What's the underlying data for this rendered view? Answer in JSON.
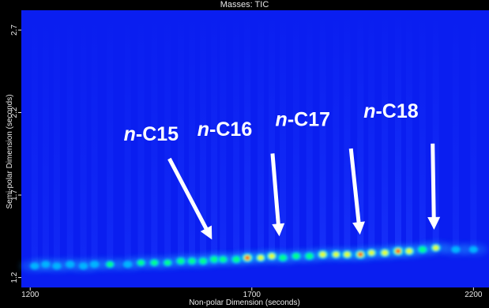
{
  "chart_data": {
    "type": "heatmap",
    "title": "Masses: TIC",
    "xlabel": "Non-polar Dimension (seconds)",
    "ylabel": "Semi-polar Dimension (seconds)",
    "xlim": [
      1180,
      2235
    ],
    "ylim": [
      1.14,
      2.82
    ],
    "x_ticks": [
      {
        "value": 1200,
        "label": "1200"
      },
      {
        "value": 1700,
        "label": "1700"
      },
      {
        "value": 2200,
        "label": "2200"
      }
    ],
    "y_ticks": [
      {
        "value": 1.2,
        "label": "1.2"
      },
      {
        "value": 1.7,
        "label": "1.7"
      },
      {
        "value": 2.2,
        "label": "2.2"
      },
      {
        "value": 2.7,
        "label": "2.7"
      }
    ],
    "grid": false,
    "colors": {
      "background": "#0a1ef0",
      "low": "#00aaff",
      "mid": "#00ff88",
      "high": "#ff1a1a",
      "frame": "#000000"
    },
    "peaks": [
      {
        "x": 1210,
        "y": 1.27,
        "intensity": 0.25
      },
      {
        "x": 1235,
        "y": 1.28,
        "intensity": 0.2
      },
      {
        "x": 1260,
        "y": 1.27,
        "intensity": 0.25
      },
      {
        "x": 1290,
        "y": 1.28,
        "intensity": 0.3
      },
      {
        "x": 1320,
        "y": 1.27,
        "intensity": 0.25
      },
      {
        "x": 1345,
        "y": 1.28,
        "intensity": 0.3
      },
      {
        "x": 1380,
        "y": 1.28,
        "intensity": 0.35
      },
      {
        "x": 1420,
        "y": 1.28,
        "intensity": 0.3
      },
      {
        "x": 1450,
        "y": 1.29,
        "intensity": 0.35
      },
      {
        "x": 1480,
        "y": 1.29,
        "intensity": 0.4
      },
      {
        "x": 1510,
        "y": 1.29,
        "intensity": 0.35
      },
      {
        "x": 1540,
        "y": 1.3,
        "intensity": 0.5
      },
      {
        "x": 1565,
        "y": 1.3,
        "intensity": 0.45
      },
      {
        "x": 1590,
        "y": 1.3,
        "intensity": 0.5
      },
      {
        "x": 1615,
        "y": 1.31,
        "intensity": 0.55
      },
      {
        "x": 1635,
        "y": 1.31,
        "intensity": 0.45
      },
      {
        "x": 1665,
        "y": 1.31,
        "intensity": 0.55
      },
      {
        "x": 1690,
        "y": 1.32,
        "intensity": 0.95
      },
      {
        "x": 1720,
        "y": 1.32,
        "intensity": 0.6
      },
      {
        "x": 1745,
        "y": 1.33,
        "intensity": 0.7
      },
      {
        "x": 1770,
        "y": 1.32,
        "intensity": 0.55
      },
      {
        "x": 1800,
        "y": 1.33,
        "intensity": 0.5
      },
      {
        "x": 1830,
        "y": 1.33,
        "intensity": 0.55
      },
      {
        "x": 1860,
        "y": 1.34,
        "intensity": 0.75
      },
      {
        "x": 1890,
        "y": 1.34,
        "intensity": 0.6
      },
      {
        "x": 1915,
        "y": 1.34,
        "intensity": 0.7
      },
      {
        "x": 1945,
        "y": 1.34,
        "intensity": 0.9
      },
      {
        "x": 1970,
        "y": 1.35,
        "intensity": 0.6
      },
      {
        "x": 2000,
        "y": 1.35,
        "intensity": 0.7
      },
      {
        "x": 2030,
        "y": 1.36,
        "intensity": 1.0
      },
      {
        "x": 2055,
        "y": 1.36,
        "intensity": 0.7
      },
      {
        "x": 2085,
        "y": 1.37,
        "intensity": 0.55
      },
      {
        "x": 2115,
        "y": 1.38,
        "intensity": 0.6
      },
      {
        "x": 2160,
        "y": 1.37,
        "intensity": 0.25
      },
      {
        "x": 2200,
        "y": 1.37,
        "intensity": 0.2
      }
    ],
    "annotations": [
      {
        "prefix": "n",
        "suffix": "-C15",
        "label_x": 1411,
        "label_y": 2.03,
        "arrow_from": [
          1516,
          1.91
        ],
        "arrow_to": [
          1610,
          1.43
        ]
      },
      {
        "prefix": "n",
        "suffix": "-C16",
        "label_x": 1577,
        "label_y": 2.06,
        "arrow_from": [
          1747,
          1.94
        ],
        "arrow_to": [
          1762,
          1.45
        ]
      },
      {
        "prefix": "n",
        "suffix": "-C17",
        "label_x": 1753,
        "label_y": 2.12,
        "arrow_from": [
          1924,
          1.97
        ],
        "arrow_to": [
          1944,
          1.46
        ]
      },
      {
        "prefix": "n",
        "suffix": "-C18",
        "label_x": 1952,
        "label_y": 2.17,
        "arrow_from": [
          2108,
          2.0
        ],
        "arrow_to": [
          2111,
          1.49
        ]
      }
    ]
  }
}
